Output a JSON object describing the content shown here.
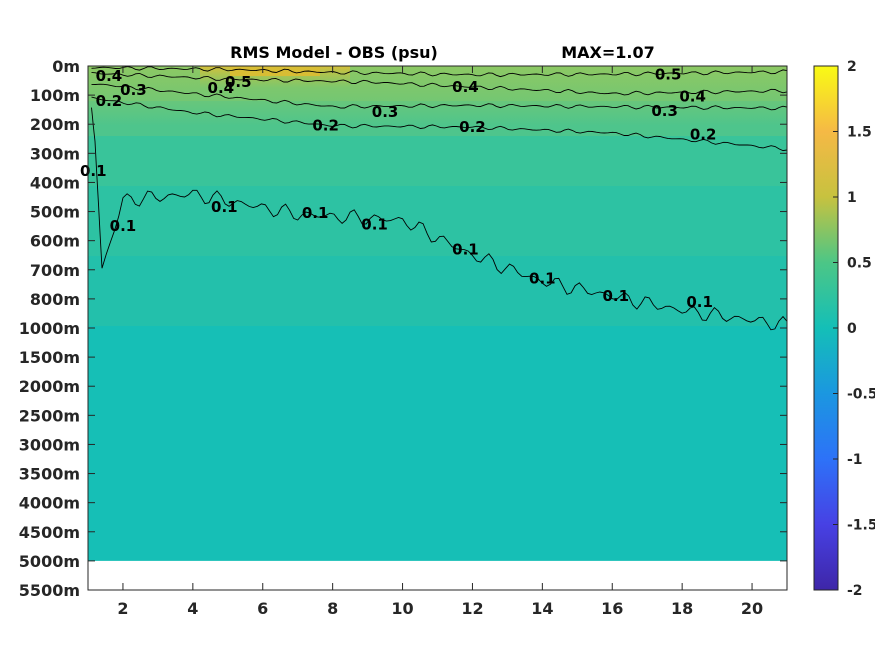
{
  "chart_data": {
    "type": "heatmap",
    "title": "RMS Model - OBS (psu)",
    "max_label": "MAX=1.07",
    "x_ticks": [
      2,
      4,
      6,
      8,
      10,
      12,
      14,
      16,
      18,
      20
    ],
    "xlim": [
      1,
      21
    ],
    "y_ticks": [
      "0m",
      "100m",
      "200m",
      "300m",
      "400m",
      "500m",
      "600m",
      "700m",
      "800m",
      "1000m",
      "1500m",
      "2000m",
      "2500m",
      "3000m",
      "3500m",
      "4000m",
      "4500m",
      "5000m",
      "5500m"
    ],
    "y_reversed": true,
    "colorbar": {
      "colormap": "parula",
      "clim": [
        -2,
        2
      ],
      "ticks": [
        "2",
        "1.5",
        "1",
        "0.5",
        "0",
        "-0.5",
        "-1",
        "-1.5",
        "-2"
      ],
      "colors": {
        "neg2": "#3e26a8",
        "neg1": "#2d72f8",
        "zero": "#14bfb7",
        "pos1": "#c7c23f",
        "pos2": "#f9fb14"
      }
    },
    "fill_value": 0,
    "valid_depth_max": "5000m",
    "contours": [
      {
        "level": 0.5,
        "points": [
          [
            1.1,
            0.05
          ],
          [
            5,
            0.12
          ],
          [
            8,
            0.22
          ],
          [
            12,
            0.3
          ],
          [
            16,
            0.28
          ],
          [
            21,
            0.2
          ]
        ],
        "labels": [
          {
            "text": "0.5",
            "x": 17.6,
            "y": 0.3
          },
          {
            "text": "0.5",
            "x": 5.3,
            "y": 0.55
          }
        ]
      },
      {
        "level": 0.4,
        "points": [
          [
            1.1,
            0.25
          ],
          [
            5,
            0.45
          ],
          [
            9,
            0.55
          ],
          [
            12,
            0.72
          ],
          [
            16,
            0.95
          ],
          [
            21,
            0.85
          ]
        ],
        "labels": [
          {
            "text": "0.4",
            "x": 1.6,
            "y": 0.35
          },
          {
            "text": "0.4",
            "x": 11.8,
            "y": 0.72
          },
          {
            "text": "0.4",
            "x": 18.3,
            "y": 1.05
          },
          {
            "text": "0.4",
            "x": 4.8,
            "y": 0.75
          }
        ]
      },
      {
        "level": 0.3,
        "points": [
          [
            1.1,
            0.6
          ],
          [
            4,
            0.95
          ],
          [
            8,
            1.4
          ],
          [
            12,
            1.35
          ],
          [
            16,
            1.4
          ],
          [
            21,
            1.45
          ]
        ],
        "labels": [
          {
            "text": "0.3",
            "x": 2.3,
            "y": 0.82
          },
          {
            "text": "0.3",
            "x": 9.5,
            "y": 1.58
          },
          {
            "text": "0.3",
            "x": 17.5,
            "y": 1.55
          }
        ]
      },
      {
        "level": 0.2,
        "points": [
          [
            1.1,
            1.1
          ],
          [
            4,
            1.6
          ],
          [
            8,
            2.05
          ],
          [
            12,
            2.1
          ],
          [
            16,
            2.3
          ],
          [
            21,
            2.85
          ]
        ],
        "labels": [
          {
            "text": "0.2",
            "x": 1.6,
            "y": 1.2
          },
          {
            "text": "0.2",
            "x": 7.8,
            "y": 2.05
          },
          {
            "text": "0.2",
            "x": 12,
            "y": 2.1
          },
          {
            "text": "0.2",
            "x": 18.6,
            "y": 2.35
          }
        ]
      },
      {
        "level": 0.1,
        "points": [
          [
            1.1,
            1.3
          ],
          [
            1.2,
            2.5
          ],
          [
            1.4,
            7.0
          ],
          [
            2,
            4.6
          ],
          [
            4,
            4.4
          ],
          [
            7,
            5.1
          ],
          [
            10,
            5.3
          ],
          [
            12,
            6.5
          ],
          [
            14,
            7.4
          ],
          [
            16,
            7.9
          ],
          [
            18,
            8.4
          ],
          [
            21,
            8.9
          ]
        ],
        "labels": [
          {
            "text": "0.1",
            "x": 1.15,
            "y": 3.6
          },
          {
            "text": "0.1",
            "x": 2.0,
            "y": 5.5
          },
          {
            "text": "0.1",
            "x": 4.9,
            "y": 4.85
          },
          {
            "text": "0.1",
            "x": 7.5,
            "y": 5.05
          },
          {
            "text": "0.1",
            "x": 9.2,
            "y": 5.45
          },
          {
            "text": "0.1",
            "x": 11.8,
            "y": 6.3
          },
          {
            "text": "0.1",
            "x": 14.0,
            "y": 7.3
          },
          {
            "text": "0.1",
            "x": 16.1,
            "y": 7.9
          },
          {
            "text": "0.1",
            "x": 18.5,
            "y": 8.1
          }
        ]
      }
    ]
  }
}
